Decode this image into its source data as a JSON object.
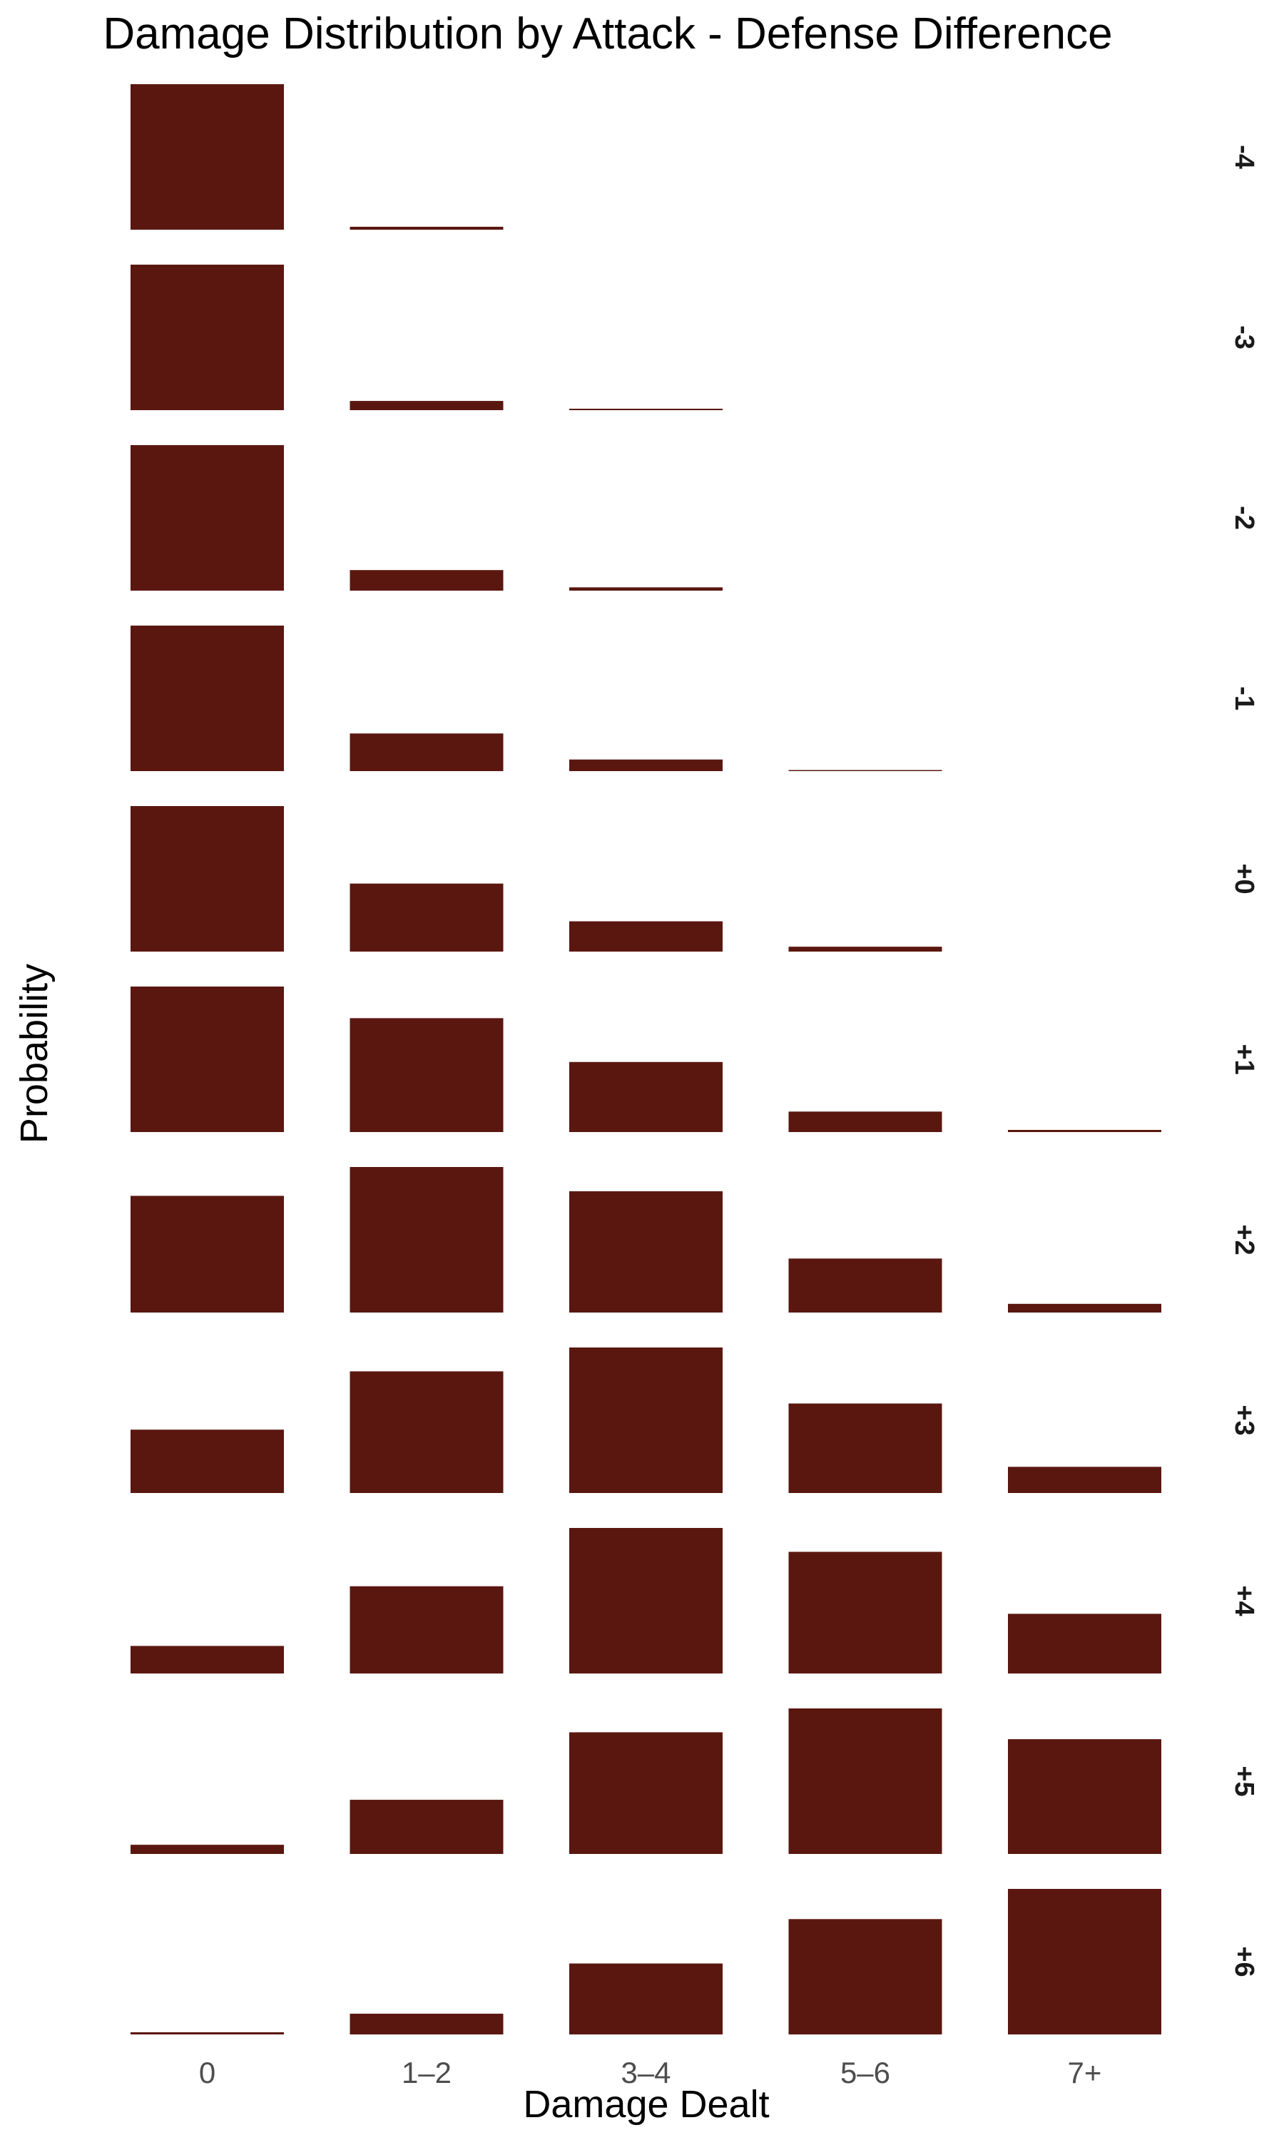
{
  "chart_data": {
    "type": "bar",
    "title": "Damage Distribution by Attack - Defense Difference",
    "xlabel": "Damage Dealt",
    "ylabel": "Probability",
    "categories": [
      "0",
      "1–2",
      "3–4",
      "5–6",
      "7+"
    ],
    "facet_variable": "Attack - Defense Difference",
    "facets": [
      {
        "label": "-4",
        "values": [
          0.945,
          0.019,
          0.0,
          0.0,
          0.0
        ]
      },
      {
        "label": "-3",
        "values": [
          0.9,
          0.057,
          0.009,
          0.0,
          0.0
        ]
      },
      {
        "label": "-2",
        "values": [
          0.835,
          0.118,
          0.019,
          0.0,
          0.0
        ]
      },
      {
        "label": "-1",
        "values": [
          0.715,
          0.185,
          0.057,
          0.005,
          0.0
        ]
      },
      {
        "label": "+0",
        "values": [
          0.567,
          0.265,
          0.118,
          0.019,
          0.0
        ]
      },
      {
        "label": "+1",
        "values": [
          0.405,
          0.317,
          0.195,
          0.057,
          0.006
        ]
      },
      {
        "label": "+2",
        "values": [
          0.255,
          0.318,
          0.265,
          0.118,
          0.019
        ]
      },
      {
        "label": "+3",
        "values": [
          0.138,
          0.265,
          0.317,
          0.195,
          0.057
        ]
      },
      {
        "label": "+4",
        "values": [
          0.06,
          0.19,
          0.317,
          0.265,
          0.13
        ]
      },
      {
        "label": "+5",
        "values": [
          0.02,
          0.118,
          0.265,
          0.317,
          0.25
        ]
      },
      {
        "label": "+6",
        "values": [
          0.006,
          0.057,
          0.195,
          0.317,
          0.4
        ]
      }
    ],
    "ylim": [
      0,
      1
    ],
    "bar_color": "#5a1710",
    "grid": false,
    "legend": "none"
  }
}
